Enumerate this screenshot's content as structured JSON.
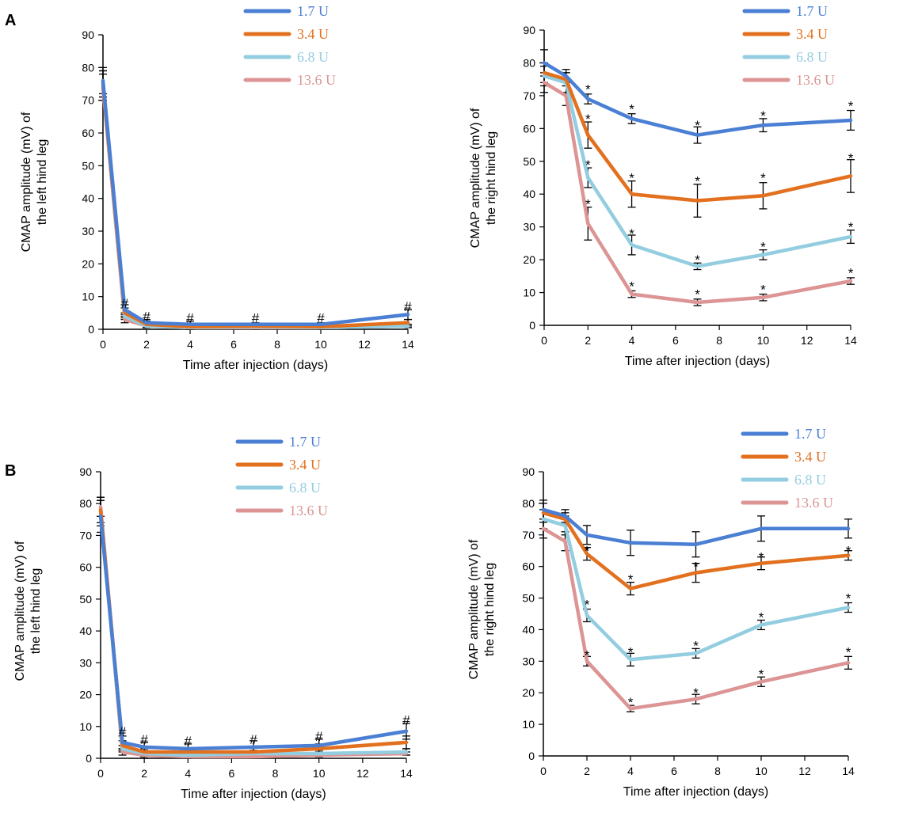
{
  "figure": {
    "panel_labels": [
      "A",
      "B"
    ]
  },
  "legend_labels": [
    "1.7 U",
    "3.4  U",
    "6.8  U",
    "13.6  U"
  ],
  "colors": {
    "1.7U": "#4a7fd4",
    "3.4U": "#e2701e",
    "6.8U": "#93cde0",
    "13.6U": "#dc9494",
    "axis": "#000000"
  },
  "chart_data": [
    {
      "id": "A-left",
      "panel": "A",
      "type": "line",
      "xlabel": "Time after injection (days)",
      "ylabel_lines": [
        "CMAP amplitude (mV) of",
        "the left hind leg"
      ],
      "xlim": [
        0,
        14
      ],
      "ylim": [
        0,
        90
      ],
      "xticks": [
        0,
        2,
        4,
        6,
        8,
        10,
        12,
        14
      ],
      "yticks": [
        0,
        10,
        20,
        30,
        40,
        50,
        60,
        70,
        80,
        90
      ],
      "x": [
        0,
        1,
        2,
        4,
        7,
        10,
        14
      ],
      "series": [
        {
          "name": "1.7 U",
          "values": [
            76,
            6,
            2,
            1.5,
            1.5,
            1.5,
            4.5
          ],
          "err": [
            4,
            1.5,
            1,
            1,
            0.5,
            0.5,
            1.5
          ]
        },
        {
          "name": "3.4  U",
          "values": [
            75,
            5,
            1.5,
            0.8,
            1,
            0.8,
            2
          ],
          "err": [
            4,
            1.5,
            1,
            1,
            0.5,
            0.5,
            1
          ]
        },
        {
          "name": "6.8  U",
          "values": [
            75,
            4,
            1,
            0.5,
            0.8,
            0.5,
            1
          ],
          "err": [
            4,
            1,
            0.5,
            0.5,
            0.5,
            0.5,
            0.5
          ]
        },
        {
          "name": "13.6  U",
          "values": [
            74,
            3,
            1,
            0.5,
            0.5,
            0.5,
            1
          ],
          "err": [
            4,
            1,
            0.5,
            0.5,
            0.5,
            0.5,
            0.5
          ]
        }
      ],
      "annotations": [
        {
          "x": 1,
          "y": 8,
          "text": "#"
        },
        {
          "x": 2,
          "y": 4,
          "text": "#"
        },
        {
          "x": 4,
          "y": 3.5,
          "text": "#"
        },
        {
          "x": 7,
          "y": 3.5,
          "text": "#"
        },
        {
          "x": 10,
          "y": 3.5,
          "text": "#"
        },
        {
          "x": 14,
          "y": 7,
          "text": "#"
        }
      ]
    },
    {
      "id": "A-right",
      "panel": "A",
      "type": "line",
      "xlabel": "Time after injection (days)",
      "ylabel_lines": [
        "CMAP amplitude (mV) of",
        "the right hind leg"
      ],
      "xlim": [
        0,
        14
      ],
      "ylim": [
        0,
        90
      ],
      "xticks": [
        0,
        2,
        4,
        6,
        8,
        10,
        12,
        14
      ],
      "yticks": [
        0,
        10,
        20,
        30,
        40,
        50,
        60,
        70,
        80,
        90
      ],
      "x": [
        0,
        1,
        2,
        4,
        7,
        10,
        14
      ],
      "series": [
        {
          "name": "1.7 U",
          "values": [
            80,
            76,
            69,
            63,
            58,
            61,
            62.5
          ],
          "err": [
            4,
            2,
            1.5,
            1.5,
            2.5,
            2,
            3
          ]
        },
        {
          "name": "3.4  U",
          "values": [
            77,
            75,
            58,
            40,
            38,
            39.5,
            45.5
          ],
          "err": [
            3,
            2,
            4,
            4,
            5,
            4,
            5
          ]
        },
        {
          "name": "6.8  U",
          "values": [
            76,
            74,
            45,
            24.5,
            18,
            21.5,
            27
          ],
          "err": [
            3,
            3,
            3,
            3,
            1,
            1.5,
            2
          ]
        },
        {
          "name": "13.6  U",
          "values": [
            74,
            70,
            31,
            9.5,
            7,
            8.5,
            13.5
          ],
          "err": [
            3,
            3,
            5,
            1,
            1,
            1,
            1
          ]
        }
      ],
      "annotations": [
        {
          "x": 2,
          "y": 72,
          "text": "*"
        },
        {
          "x": 4,
          "y": 66,
          "text": "*"
        },
        {
          "x": 7,
          "y": 61,
          "text": "*"
        },
        {
          "x": 10,
          "y": 64,
          "text": "*"
        },
        {
          "x": 14,
          "y": 67,
          "text": "*"
        },
        {
          "x": 2,
          "y": 63,
          "text": "*"
        },
        {
          "x": 4,
          "y": 45,
          "text": "*"
        },
        {
          "x": 7,
          "y": 44,
          "text": "*"
        },
        {
          "x": 10,
          "y": 45,
          "text": "*"
        },
        {
          "x": 14,
          "y": 51,
          "text": "*"
        },
        {
          "x": 2,
          "y": 49,
          "text": "*"
        },
        {
          "x": 4,
          "y": 28,
          "text": "*"
        },
        {
          "x": 7,
          "y": 20,
          "text": "*"
        },
        {
          "x": 10,
          "y": 24,
          "text": "*"
        },
        {
          "x": 14,
          "y": 30,
          "text": "*"
        },
        {
          "x": 2,
          "y": 37,
          "text": "*"
        },
        {
          "x": 4,
          "y": 12,
          "text": "*"
        },
        {
          "x": 7,
          "y": 9.5,
          "text": "*"
        },
        {
          "x": 10,
          "y": 11,
          "text": "*"
        },
        {
          "x": 14,
          "y": 16,
          "text": "*"
        }
      ]
    },
    {
      "id": "B-left",
      "panel": "B",
      "type": "line",
      "xlabel": "Time after injection (days)",
      "ylabel_lines": [
        "CMAP amplitude (mV) of",
        "the left hind leg"
      ],
      "xlim": [
        0,
        14
      ],
      "ylim": [
        0,
        90
      ],
      "xticks": [
        0,
        2,
        4,
        6,
        8,
        10,
        12,
        14
      ],
      "yticks": [
        0,
        10,
        20,
        30,
        40,
        50,
        60,
        70,
        80,
        90
      ],
      "x": [
        0,
        1,
        2,
        4,
        7,
        10,
        14
      ],
      "series": [
        {
          "name": "1.7 U",
          "values": [
            76,
            5,
            3.5,
            3,
            3.5,
            4,
            8.5
          ],
          "err": [
            5,
            2,
            1.5,
            1.5,
            2,
            2,
            2.5
          ]
        },
        {
          "name": "3.4  U",
          "values": [
            78,
            4,
            2,
            2,
            2,
            3,
            5
          ],
          "err": [
            4,
            1.5,
            1,
            1,
            1.5,
            1.5,
            2
          ]
        },
        {
          "name": "6.8  U",
          "values": [
            77,
            3,
            1.5,
            1,
            1.5,
            1.5,
            2
          ],
          "err": [
            4,
            1,
            1,
            1,
            1,
            1,
            1
          ]
        },
        {
          "name": "13.6  U",
          "values": [
            79,
            2,
            1,
            0.5,
            0.5,
            1,
            1.5
          ],
          "err": [
            3,
            1,
            1,
            0.5,
            0.5,
            0.5,
            0.5
          ]
        }
      ],
      "annotations": [
        {
          "x": 1,
          "y": 8.5,
          "text": "#"
        },
        {
          "x": 2,
          "y": 6,
          "text": "#"
        },
        {
          "x": 4,
          "y": 5.5,
          "text": "#"
        },
        {
          "x": 7,
          "y": 6,
          "text": "#"
        },
        {
          "x": 10,
          "y": 7,
          "text": "#"
        },
        {
          "x": 14,
          "y": 12,
          "text": "#"
        }
      ]
    },
    {
      "id": "B-right",
      "panel": "B",
      "type": "line",
      "xlabel": "Time after injection (days)",
      "ylabel_lines": [
        "CMAP amplitude (mV) of",
        "the right hind leg"
      ],
      "xlim": [
        0,
        14
      ],
      "ylim": [
        0,
        90
      ],
      "xticks": [
        0,
        2,
        4,
        6,
        8,
        10,
        12,
        14
      ],
      "yticks": [
        0,
        10,
        20,
        30,
        40,
        50,
        60,
        70,
        80,
        90
      ],
      "x": [
        0,
        1,
        2,
        4,
        7,
        10,
        14
      ],
      "series": [
        {
          "name": "1.7 U",
          "values": [
            78,
            76,
            70,
            67.5,
            67,
            72,
            72
          ],
          "err": [
            3,
            2,
            3,
            4,
            4,
            4,
            3
          ]
        },
        {
          "name": "3.4  U",
          "values": [
            77,
            75,
            64,
            53,
            58,
            61,
            63.5
          ],
          "err": [
            3,
            2,
            2,
            2,
            3,
            2,
            1.5
          ]
        },
        {
          "name": "6.8  U",
          "values": [
            75,
            73,
            44.5,
            30.5,
            32.5,
            41.5,
            47
          ],
          "err": [
            3,
            3,
            2,
            2,
            1.5,
            1.5,
            1.5
          ]
        },
        {
          "name": "13.6  U",
          "values": [
            72,
            68,
            30,
            15,
            18,
            23.5,
            29.5
          ],
          "err": [
            3,
            3,
            1.5,
            1,
            1.5,
            1.5,
            2
          ]
        }
      ],
      "annotations": [
        {
          "x": 2,
          "y": 65,
          "text": "*"
        },
        {
          "x": 4,
          "y": 56,
          "text": "*"
        },
        {
          "x": 7,
          "y": 60,
          "text": "*"
        },
        {
          "x": 10,
          "y": 63,
          "text": "*"
        },
        {
          "x": 14,
          "y": 65,
          "text": "*"
        },
        {
          "x": 2,
          "y": 48,
          "text": "*"
        },
        {
          "x": 4,
          "y": 33,
          "text": "*"
        },
        {
          "x": 7,
          "y": 35,
          "text": "*"
        },
        {
          "x": 10,
          "y": 44,
          "text": "*"
        },
        {
          "x": 14,
          "y": 50,
          "text": "*"
        },
        {
          "x": 2,
          "y": 32,
          "text": "*"
        },
        {
          "x": 4,
          "y": 17,
          "text": "*"
        },
        {
          "x": 7,
          "y": 20,
          "text": "*"
        },
        {
          "x": 10,
          "y": 26,
          "text": "*"
        },
        {
          "x": 14,
          "y": 33,
          "text": "*"
        }
      ]
    }
  ]
}
